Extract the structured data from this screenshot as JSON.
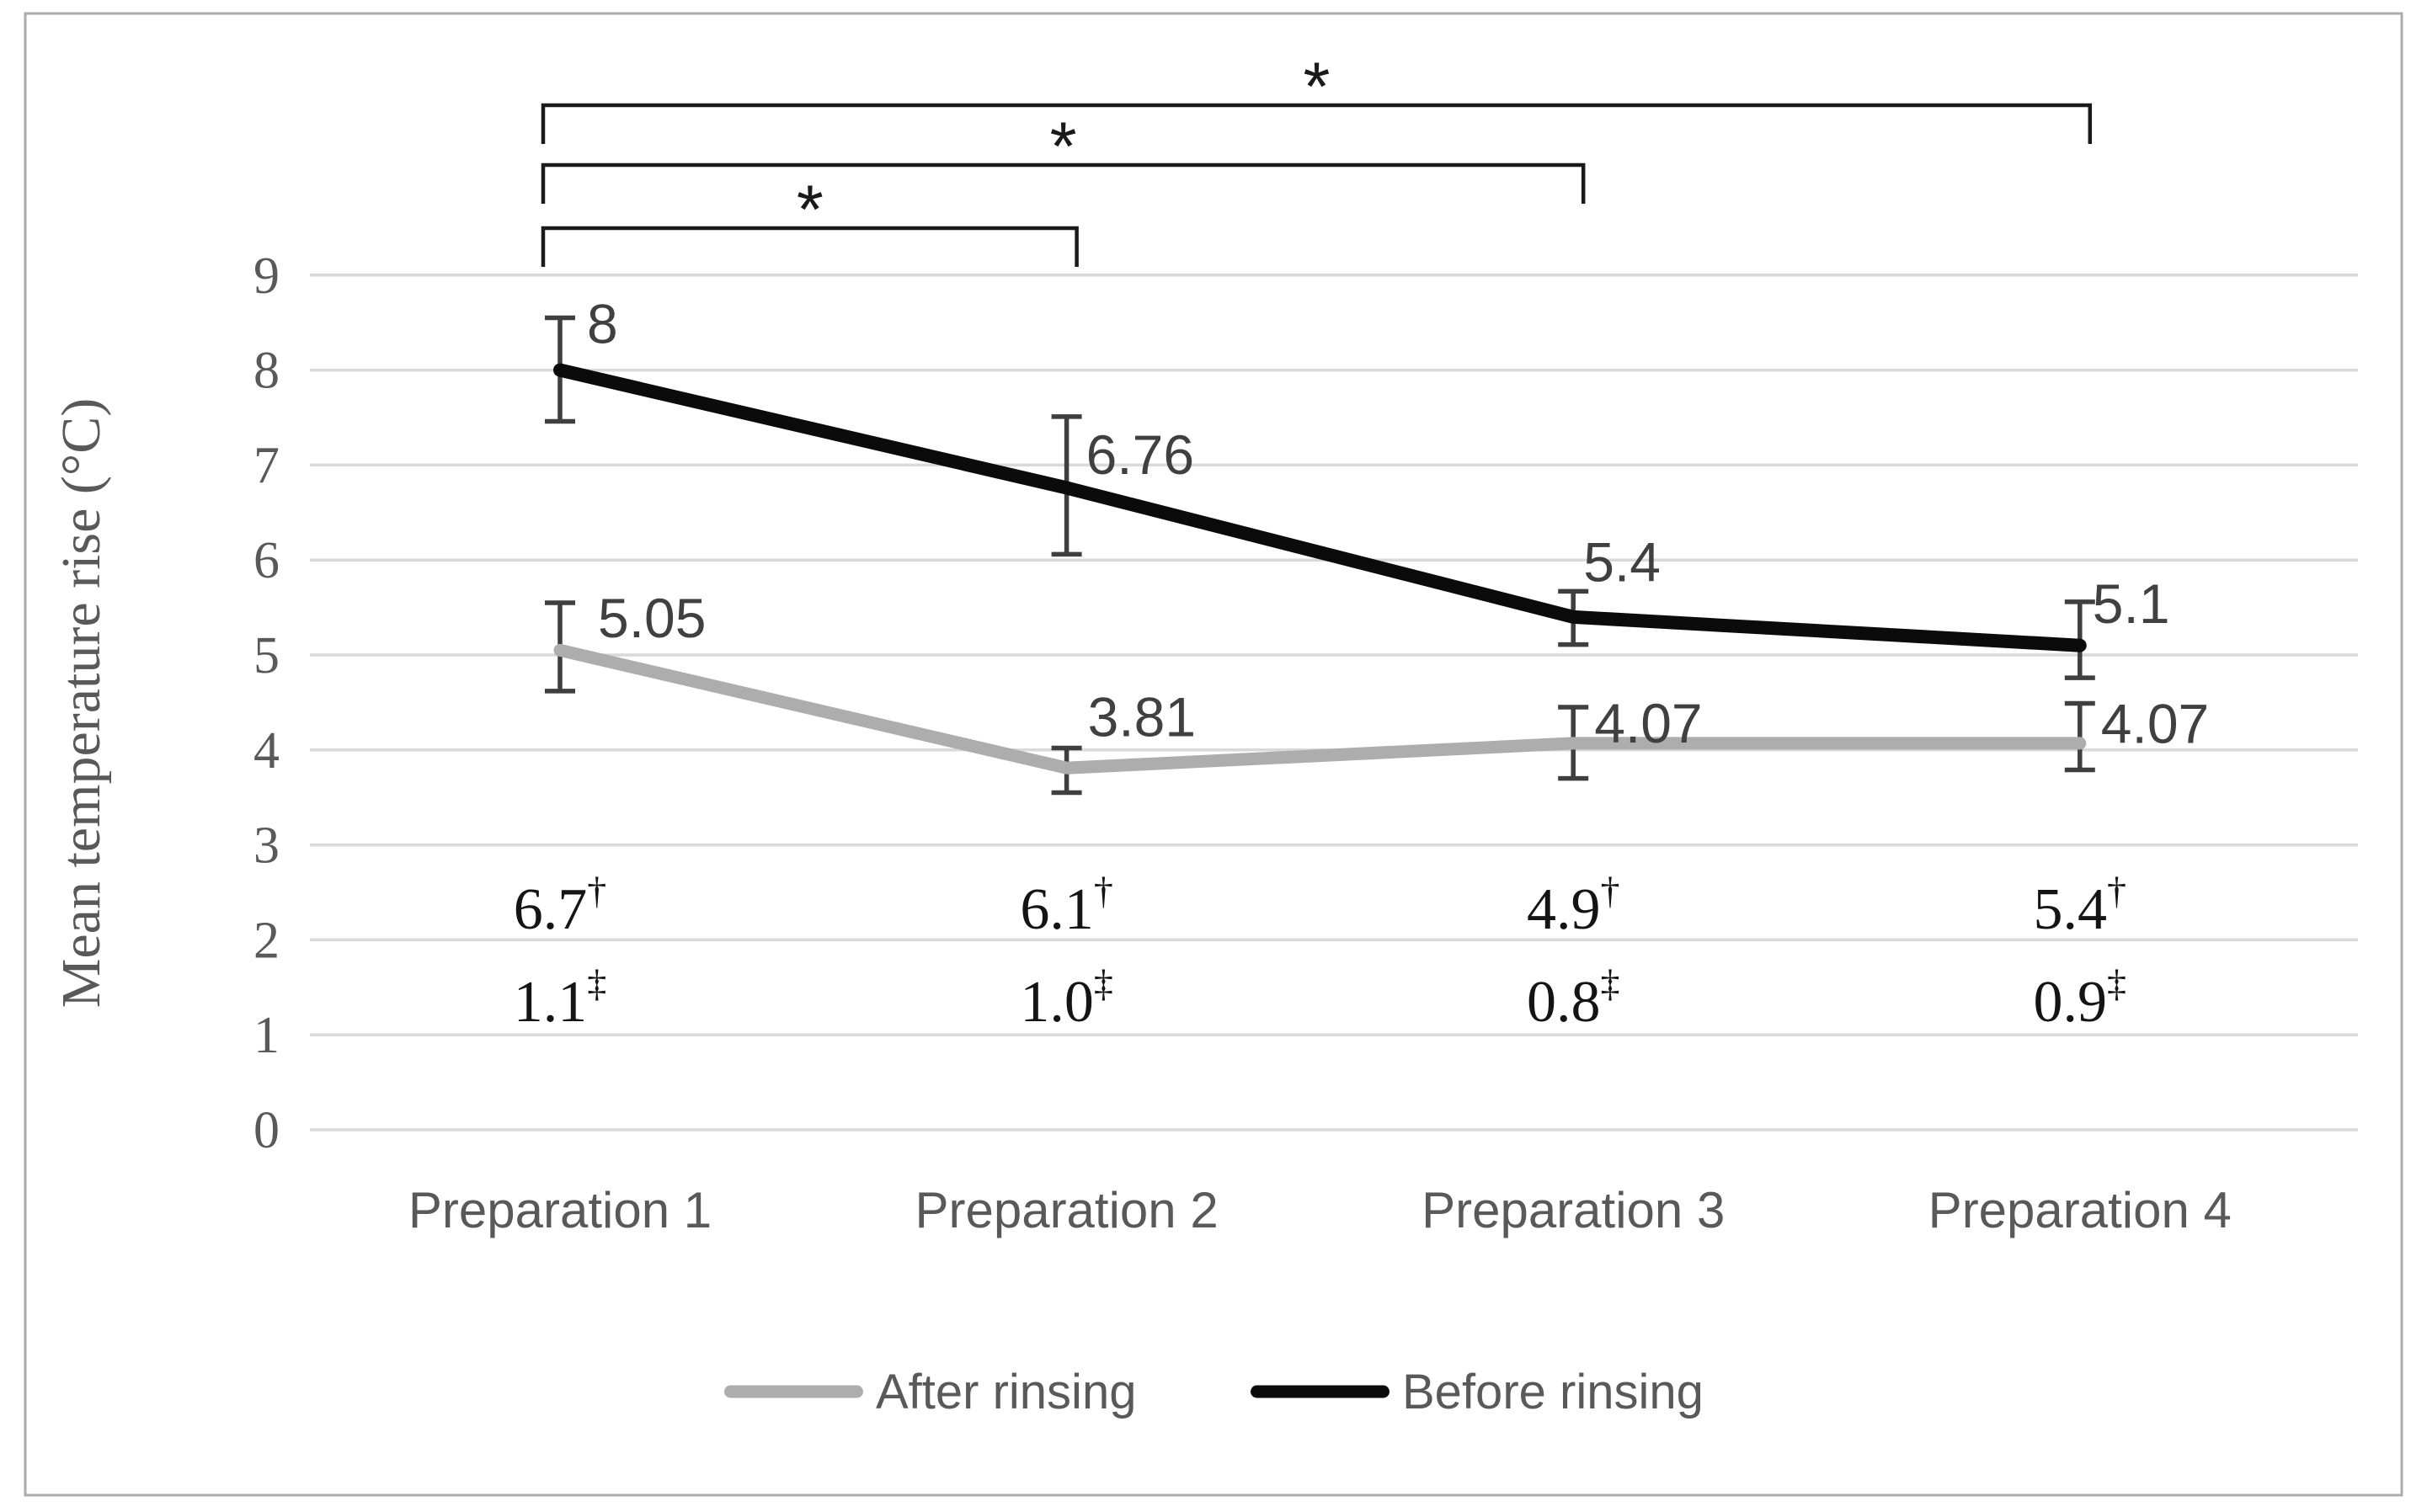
{
  "chart_data": {
    "type": "line",
    "title": "",
    "xlabel": "",
    "ylabel": "Mean temperature rise (°C)",
    "ylim": [
      0,
      9
    ],
    "ytick_step": 1,
    "yticks": [
      9,
      8,
      7,
      6,
      5,
      4,
      3,
      2,
      1,
      0
    ],
    "grid": true,
    "legend_position": "bottom",
    "categories": [
      "Preparation 1",
      "Preparation 2",
      "Preparation 3",
      "Preparation 4"
    ],
    "series": [
      {
        "name": "After rinsing",
        "color": "#adadad",
        "values": [
          5.05,
          3.81,
          4.07,
          4.07
        ],
        "data_labels": [
          "5.05",
          "3.81",
          "4.07",
          "4.07"
        ],
        "error_up": [
          0.5,
          0.21,
          0.38,
          0.42
        ],
        "error_down": [
          0.43,
          0.26,
          0.37,
          0.28
        ]
      },
      {
        "name": "Before rinsing",
        "color": "#0b0b0b",
        "values": [
          8,
          6.76,
          5.4,
          5.1
        ],
        "data_labels": [
          "8",
          "6.76",
          "5.4",
          "5.1"
        ],
        "error_up": [
          0.55,
          0.75,
          0.27,
          0.46
        ],
        "error_down": [
          0.54,
          0.7,
          0.29,
          0.34
        ]
      }
    ],
    "footnote_rows": [
      {
        "marker": "†",
        "values": [
          "6.7",
          "6.1",
          "4.9",
          "5.4"
        ]
      },
      {
        "marker": "‡",
        "values": [
          "1.1",
          "1.0",
          "0.8",
          "0.9"
        ]
      }
    ],
    "significance_brackets": [
      {
        "from": "Preparation 1",
        "to": "Preparation 2",
        "label": "*"
      },
      {
        "from": "Preparation 1",
        "to": "Preparation 3",
        "label": "*"
      },
      {
        "from": "Preparation 1",
        "to": "Preparation 4",
        "label": "*"
      }
    ],
    "colors": {
      "error_bar": "#3f3f3f",
      "gridline": "#d9d9d9",
      "axis_text": "#595959",
      "data_label": "#404040",
      "footnote_text": "#141414",
      "bracket": "#1a1a1a",
      "border": "#ababab",
      "background": "#ffffff"
    }
  }
}
